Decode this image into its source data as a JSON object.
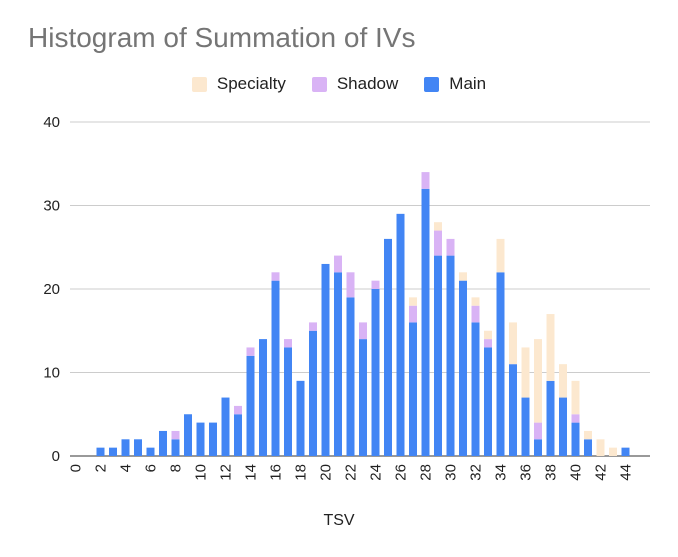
{
  "colors": {
    "specialty": "#fce8cf",
    "shadow": "#d9b3f5",
    "main": "#4285f4",
    "grid": "#cccccc",
    "axis": "#333333"
  },
  "chart_data": {
    "type": "bar",
    "stacked": true,
    "title": "Histogram of Summation of IVs",
    "xlabel": "TSV",
    "ylabel": "",
    "ylim": [
      0,
      40
    ],
    "yticks": [
      0,
      10,
      20,
      30,
      40
    ],
    "legend_position": "top",
    "grid": true,
    "categories": [
      0,
      1,
      2,
      3,
      4,
      5,
      6,
      7,
      8,
      9,
      10,
      11,
      12,
      13,
      14,
      15,
      16,
      17,
      18,
      19,
      20,
      21,
      22,
      23,
      24,
      25,
      26,
      27,
      28,
      29,
      30,
      31,
      32,
      33,
      34,
      35,
      36,
      37,
      38,
      39,
      40,
      41,
      42,
      43,
      44
    ],
    "xtick_labels": [
      "0",
      "2",
      "4",
      "6",
      "8",
      "10",
      "12",
      "14",
      "16",
      "18",
      "20",
      "22",
      "24",
      "26",
      "28",
      "30",
      "32",
      "34",
      "36",
      "38",
      "40",
      "42",
      "44"
    ],
    "series": [
      {
        "name": "Main",
        "color_key": "main",
        "values": [
          0,
          0,
          1,
          1,
          2,
          2,
          1,
          3,
          2,
          5,
          4,
          4,
          7,
          5,
          12,
          14,
          21,
          13,
          9,
          15,
          23,
          22,
          19,
          14,
          20,
          26,
          29,
          16,
          32,
          24,
          24,
          21,
          16,
          13,
          22,
          11,
          7,
          2,
          9,
          7,
          4,
          2,
          0,
          0,
          1
        ]
      },
      {
        "name": "Shadow",
        "color_key": "shadow",
        "values": [
          0,
          0,
          0,
          0,
          0,
          0,
          0,
          0,
          1,
          0,
          0,
          0,
          0,
          1,
          1,
          0,
          1,
          1,
          0,
          1,
          0,
          2,
          3,
          2,
          1,
          0,
          0,
          2,
          2,
          3,
          2,
          0,
          2,
          1,
          0,
          0,
          0,
          2,
          0,
          0,
          1,
          0,
          0,
          0,
          0
        ]
      },
      {
        "name": "Specialty",
        "color_key": "specialty",
        "values": [
          0,
          0,
          0,
          0,
          0,
          0,
          0,
          0,
          0,
          0,
          0,
          0,
          0,
          0,
          0,
          0,
          0,
          0,
          0,
          0,
          0,
          0,
          0,
          0,
          0,
          0,
          0,
          1,
          0,
          1,
          0,
          1,
          1,
          1,
          4,
          5,
          6,
          10,
          8,
          4,
          4,
          1,
          2,
          1,
          0
        ]
      }
    ]
  }
}
